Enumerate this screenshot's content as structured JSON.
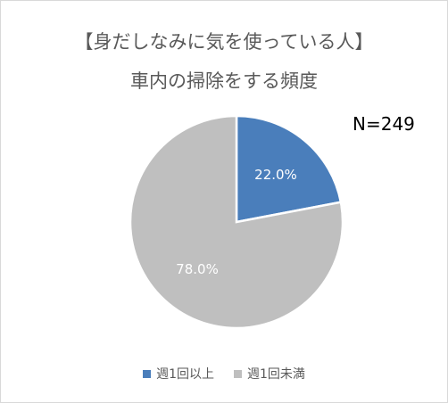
{
  "chart_data": {
    "type": "pie",
    "title": "【身だしなみに気を使っている人】",
    "subtitle": "車内の掃除をする頻度",
    "annotation": "N=249",
    "categories": [
      "週1回以上",
      "週1回未満"
    ],
    "values": [
      22.0,
      78.0
    ],
    "labels": [
      "22.0%",
      "78.0%"
    ],
    "colors": [
      "#4a7ebb",
      "#bfbfbf"
    ],
    "legend_position": "bottom"
  }
}
